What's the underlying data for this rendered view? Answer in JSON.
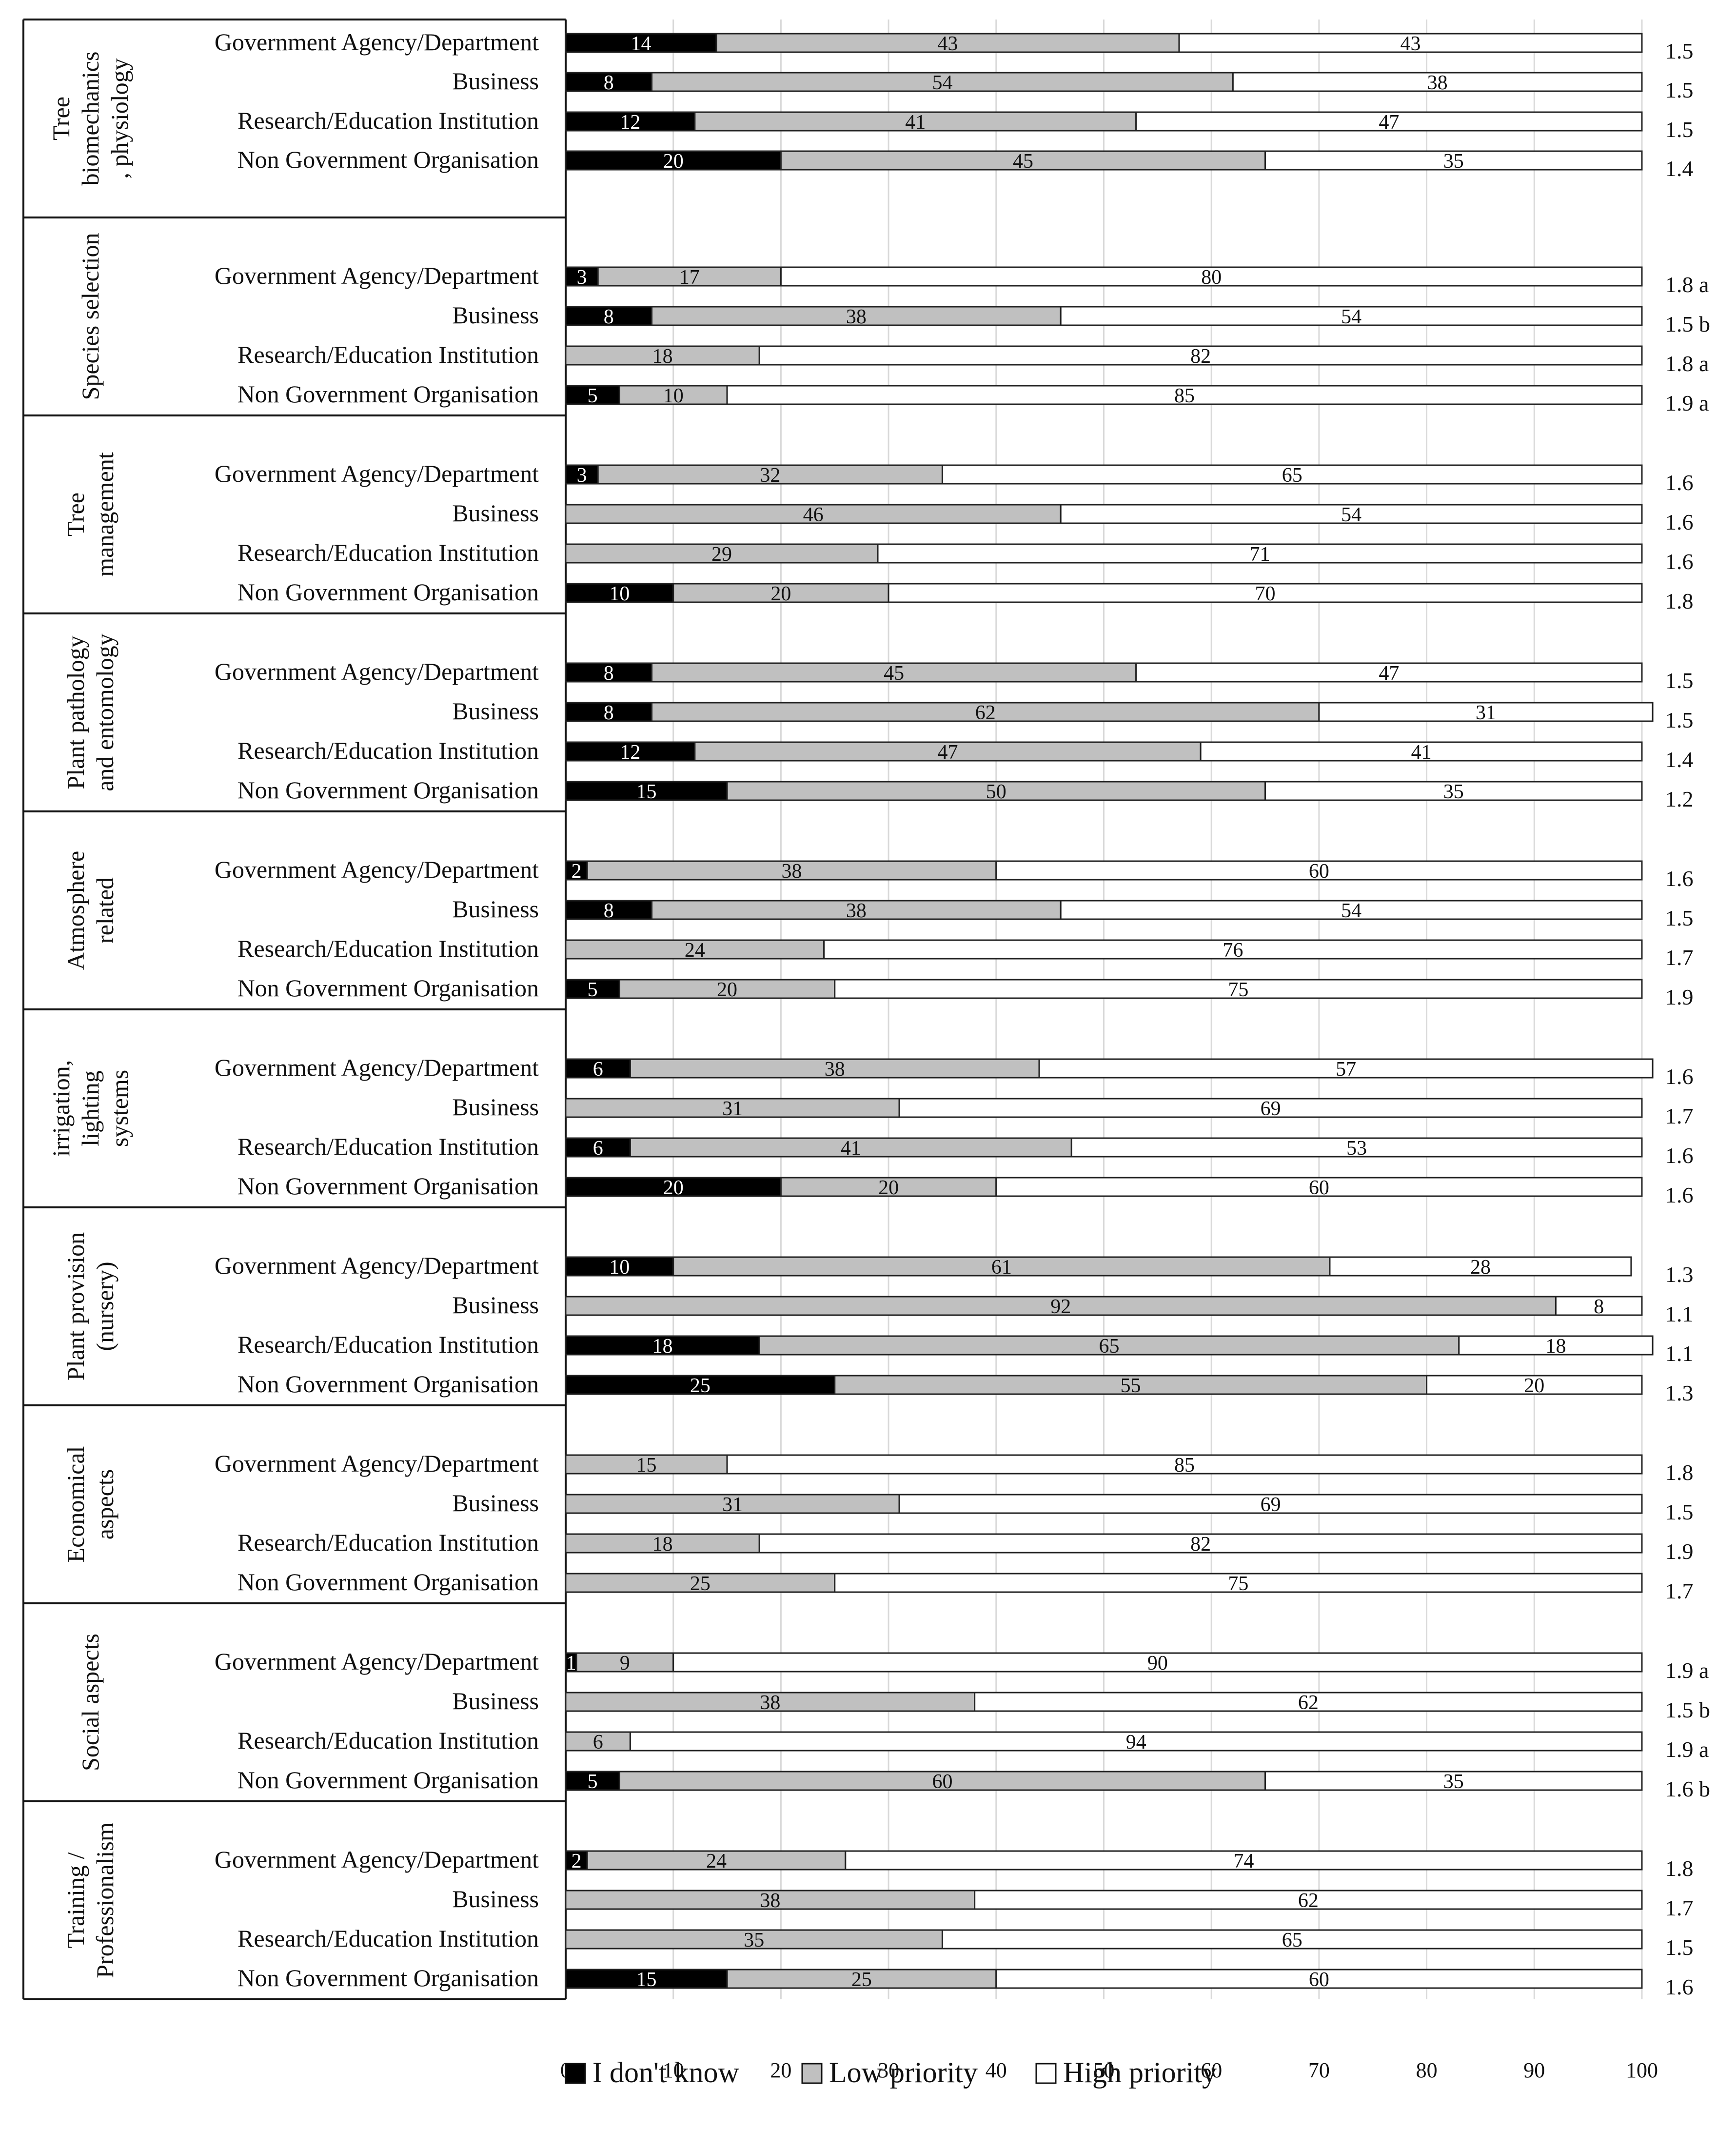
{
  "chart_data": {
    "type": "bar",
    "orientation": "horizontal-stacked-100",
    "xlim": [
      0,
      100
    ],
    "xticks": [
      0,
      10,
      20,
      30,
      40,
      50,
      60,
      70,
      80,
      90,
      100
    ],
    "series": [
      {
        "name": "I don't know",
        "color": "#000000"
      },
      {
        "name": "Low priority",
        "color": "#c0c0c0"
      },
      {
        "name": "High priority",
        "color": "#ffffff"
      }
    ],
    "groups": [
      {
        "name": "Tree biomechanics , physiology",
        "label_lines": [
          "Tree",
          "biomechanics",
          ", physiology"
        ],
        "rows": [
          {
            "category": "Government Agency/Department",
            "values": [
              14,
              43,
              43
            ],
            "score": "1.5"
          },
          {
            "category": "Business",
            "values": [
              8,
              54,
              38
            ],
            "score": "1.5"
          },
          {
            "category": "Research/Education Institution",
            "values": [
              12,
              41,
              47
            ],
            "score": "1.5"
          },
          {
            "category": "Non Government Organisation",
            "values": [
              20,
              45,
              35
            ],
            "score": "1.4"
          }
        ]
      },
      {
        "name": "Species selection",
        "label_lines": [
          "Species selection"
        ],
        "rows": [
          {
            "category": "Government Agency/Department",
            "values": [
              3,
              17,
              80
            ],
            "score": "1.8 a"
          },
          {
            "category": "Business",
            "values": [
              8,
              38,
              54
            ],
            "score": "1.5 b"
          },
          {
            "category": "Research/Education Institution",
            "values": [
              0,
              18,
              82
            ],
            "score": "1.8 a"
          },
          {
            "category": "Non Government Organisation",
            "values": [
              5,
              10,
              85
            ],
            "score": "1.9 a"
          }
        ]
      },
      {
        "name": "Tree management",
        "label_lines": [
          "Tree",
          "management"
        ],
        "rows": [
          {
            "category": "Government Agency/Department",
            "values": [
              3,
              32,
              65
            ],
            "score": "1.6"
          },
          {
            "category": "Business",
            "values": [
              0,
              46,
              54
            ],
            "score": "1.6"
          },
          {
            "category": "Research/Education Institution",
            "values": [
              0,
              29,
              71
            ],
            "score": "1.6"
          },
          {
            "category": "Non Government Organisation",
            "values": [
              10,
              20,
              70
            ],
            "score": "1.8"
          }
        ]
      },
      {
        "name": "Plant pathology and entomology",
        "label_lines": [
          "Plant pathology",
          "and entomology"
        ],
        "rows": [
          {
            "category": "Government Agency/Department",
            "values": [
              8,
              45,
              47
            ],
            "score": "1.5"
          },
          {
            "category": "Business",
            "values": [
              8,
              62,
              31
            ],
            "score": "1.5"
          },
          {
            "category": "Research/Education Institution",
            "values": [
              12,
              47,
              41
            ],
            "score": "1.4"
          },
          {
            "category": "Non Government Organisation",
            "values": [
              15,
              50,
              35
            ],
            "score": "1.2"
          }
        ]
      },
      {
        "name": "Atmosphere related",
        "label_lines": [
          "Atmosphere",
          "related"
        ],
        "rows": [
          {
            "category": "Government Agency/Department",
            "values": [
              2,
              38,
              60
            ],
            "score": "1.6"
          },
          {
            "category": "Business",
            "values": [
              8,
              38,
              54
            ],
            "score": "1.5"
          },
          {
            "category": "Research/Education Institution",
            "values": [
              0,
              24,
              76
            ],
            "score": "1.7"
          },
          {
            "category": "Non Government Organisation",
            "values": [
              5,
              20,
              75
            ],
            "score": "1.9"
          }
        ]
      },
      {
        "name": "irrigation, lighting systems",
        "label_lines": [
          "irrigation,",
          "lighting",
          "systems"
        ],
        "rows": [
          {
            "category": "Government Agency/Department",
            "values": [
              6,
              38,
              57
            ],
            "score": "1.6"
          },
          {
            "category": "Business",
            "values": [
              0,
              31,
              69
            ],
            "score": "1.7"
          },
          {
            "category": "Research/Education Institution",
            "values": [
              6,
              41,
              53
            ],
            "score": "1.6"
          },
          {
            "category": "Non Government Organisation",
            "values": [
              20,
              20,
              60
            ],
            "score": "1.6"
          }
        ]
      },
      {
        "name": "Plant provision (nursery)",
        "label_lines": [
          "Plant provision",
          "(nursery)"
        ],
        "rows": [
          {
            "category": "Government Agency/Department",
            "values": [
              10,
              61,
              28
            ],
            "score": "1.3"
          },
          {
            "category": "Business",
            "values": [
              0,
              92,
              8
            ],
            "score": "1.1"
          },
          {
            "category": "Research/Education Institution",
            "values": [
              18,
              65,
              18
            ],
            "score": "1.1"
          },
          {
            "category": "Non Government Organisation",
            "values": [
              25,
              55,
              20
            ],
            "score": "1.3"
          }
        ]
      },
      {
        "name": "Economical aspects",
        "label_lines": [
          "Economical",
          "aspects"
        ],
        "rows": [
          {
            "category": "Government Agency/Department",
            "values": [
              0,
              15,
              85
            ],
            "score": "1.8"
          },
          {
            "category": "Business",
            "values": [
              0,
              31,
              69
            ],
            "score": "1.5"
          },
          {
            "category": "Research/Education Institution",
            "values": [
              0,
              18,
              82
            ],
            "score": "1.9"
          },
          {
            "category": "Non Government Organisation",
            "values": [
              0,
              25,
              75
            ],
            "score": "1.7"
          }
        ]
      },
      {
        "name": "Social aspects",
        "label_lines": [
          "Social aspects"
        ],
        "rows": [
          {
            "category": "Government Agency/Department",
            "values": [
              1,
              9,
              90
            ],
            "score": "1.9 a"
          },
          {
            "category": "Business",
            "values": [
              0,
              38,
              62
            ],
            "score": "1.5 b"
          },
          {
            "category": "Research/Education Institution",
            "values": [
              0,
              6,
              94
            ],
            "score": "1.9 a"
          },
          {
            "category": "Non Government Organisation",
            "values": [
              5,
              60,
              35
            ],
            "score": "1.6 b"
          }
        ]
      },
      {
        "name": "Training / Professionalism",
        "label_lines": [
          "Training /",
          "Professionalism"
        ],
        "rows": [
          {
            "category": "Government Agency/Department",
            "values": [
              2,
              24,
              74
            ],
            "score": "1.8"
          },
          {
            "category": "Business",
            "values": [
              0,
              38,
              62
            ],
            "score": "1.7"
          },
          {
            "category": "Research/Education Institution",
            "values": [
              0,
              35,
              65
            ],
            "score": "1.5"
          },
          {
            "category": "Non Government Organisation",
            "values": [
              15,
              25,
              60
            ],
            "score": "1.6"
          }
        ]
      }
    ]
  }
}
